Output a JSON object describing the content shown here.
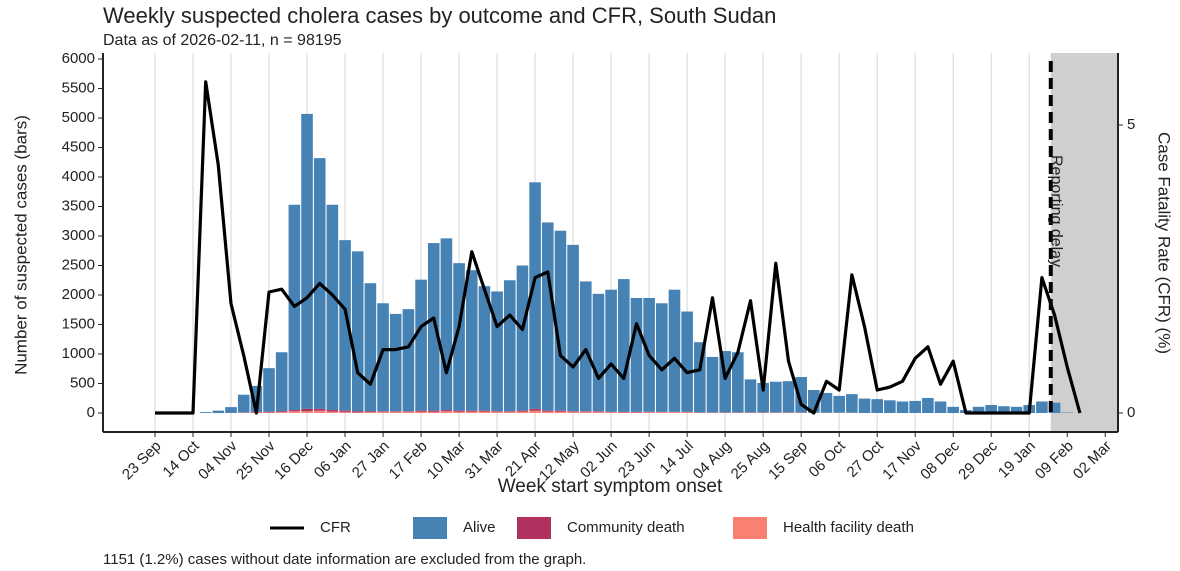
{
  "chart_data": {
    "type": "bar",
    "title": "Weekly suspected cholera cases by outcome and CFR, South Sudan",
    "subtitle": "Data as of 2026-02-11, n = 98195",
    "x_label": "Week start symptom onset",
    "y_label": "Number of suspected cases (bars)",
    "y2_label": "Case Fatality Rate (CFR) (%)",
    "note": "1151 (1.2%) cases without date information are excluded from the graph.",
    "annotation": {
      "text": "Reporting delay",
      "x": 70.7
    },
    "grid": "x",
    "stacked": true,
    "legend": "bottom",
    "categories": [
      "23 Sep",
      null,
      null,
      "14 Oct",
      null,
      null,
      "04 Nov",
      null,
      null,
      "25 Nov",
      null,
      null,
      "16 Dec",
      null,
      null,
      "06 Jan",
      null,
      null,
      "27 Jan",
      null,
      null,
      "17 Feb",
      null,
      null,
      "10 Mar",
      null,
      null,
      "31 Mar",
      null,
      null,
      "21 Apr",
      null,
      null,
      "12 May",
      null,
      null,
      "02 Jun",
      null,
      null,
      "23 Jun",
      null,
      null,
      "14 Jul",
      null,
      null,
      "04 Aug",
      null,
      null,
      "25 Aug",
      null,
      null,
      "15 Sep",
      null,
      null,
      "06 Oct",
      null,
      null,
      "27 Oct",
      null,
      null,
      "17 Nov",
      null,
      null,
      "08 Dec",
      null,
      null,
      "29 Dec",
      null,
      null,
      "19 Jan",
      null,
      null,
      "09 Feb",
      null,
      null,
      "02 Mar"
    ],
    "series": [
      {
        "name": "CFR",
        "type": "line",
        "axis": "y2",
        "color": "#000000",
        "values": [
          0,
          0,
          0,
          0,
          5.75,
          4.3,
          1.9,
          1.0,
          0,
          2.1,
          2.15,
          1.85,
          2.0,
          2.25,
          2.05,
          1.8,
          0.7,
          0.5,
          1.1,
          1.1,
          1.15,
          1.5,
          1.65,
          0.7,
          1.5,
          2.8,
          2.15,
          1.5,
          1.7,
          1.45,
          2.35,
          2.45,
          1.0,
          0.8,
          1.1,
          0.6,
          0.85,
          0.6,
          1.55,
          1.0,
          0.75,
          0.95,
          0.7,
          0.75,
          2.0,
          0.6,
          1.05,
          1.95,
          0.4,
          2.6,
          0.9,
          0.15,
          0,
          0.55,
          0.4,
          2.4,
          1.5,
          0.4,
          0.45,
          0.55,
          0.95,
          1.15,
          0.5,
          0.9,
          0,
          0,
          0,
          0,
          0,
          0,
          2.35,
          1.7,
          0.8,
          0,
          null,
          null
        ]
      },
      {
        "name": "Alive",
        "color": "#4682b4",
        "values": [
          null,
          null,
          null,
          null,
          15,
          40,
          100,
          300,
          440,
          740,
          1000,
          3480,
          5000,
          4250,
          3480,
          2890,
          2710,
          2170,
          1830,
          1650,
          1730,
          2220,
          2840,
          2910,
          2500,
          2380,
          2110,
          2030,
          2220,
          2460,
          3840,
          3190,
          3050,
          2820,
          2200,
          1990,
          2070,
          2250,
          1930,
          1930,
          1840,
          2070,
          1700,
          1190,
          940,
          1040,
          1020,
          560,
          500,
          520,
          530,
          600,
          385,
          335,
          285,
          315,
          245,
          235,
          215,
          195,
          205,
          255,
          195,
          105,
          48,
          105,
          135,
          115,
          105,
          135,
          195,
          175,
          8,
          null,
          null,
          null
        ]
      },
      {
        "name": "Community death",
        "color": "#b03060",
        "values": [
          null,
          null,
          null,
          null,
          0,
          0,
          0,
          5,
          10,
          10,
          15,
          20,
          40,
          30,
          25,
          20,
          20,
          15,
          10,
          10,
          10,
          15,
          20,
          20,
          15,
          15,
          15,
          10,
          10,
          15,
          30,
          15,
          15,
          10,
          10,
          10,
          5,
          10,
          10,
          5,
          5,
          5,
          5,
          5,
          5,
          5,
          5,
          5,
          5,
          5,
          5,
          5,
          0,
          0,
          0,
          0,
          0,
          0,
          0,
          0,
          0,
          0,
          0,
          0,
          0,
          0,
          0,
          0,
          0,
          0,
          0,
          0,
          0,
          null,
          null,
          null
        ]
      },
      {
        "name": "Health facility death",
        "color": "#fa8072",
        "values": [
          null,
          null,
          null,
          null,
          0,
          0,
          0,
          5,
          10,
          10,
          15,
          30,
          30,
          40,
          25,
          20,
          10,
          15,
          20,
          20,
          20,
          25,
          20,
          30,
          25,
          25,
          25,
          20,
          20,
          25,
          40,
          25,
          25,
          20,
          20,
          20,
          15,
          10,
          10,
          15,
          15,
          15,
          15,
          5,
          5,
          5,
          5,
          5,
          5,
          5,
          5,
          5,
          5,
          5,
          5,
          5,
          0,
          0,
          0,
          0,
          0,
          0,
          0,
          0,
          0,
          0,
          0,
          0,
          0,
          0,
          0,
          0,
          2,
          null,
          null,
          null
        ]
      }
    ],
    "ylim": [
      -322,
      6102
    ],
    "yticks": [
      0,
      500,
      1000,
      1500,
      2000,
      2500,
      3000,
      3500,
      4000,
      4500,
      5000,
      5500,
      6000
    ],
    "y2lim": [
      -0.33,
      6.25
    ],
    "y2ticks": [
      0,
      5
    ]
  }
}
